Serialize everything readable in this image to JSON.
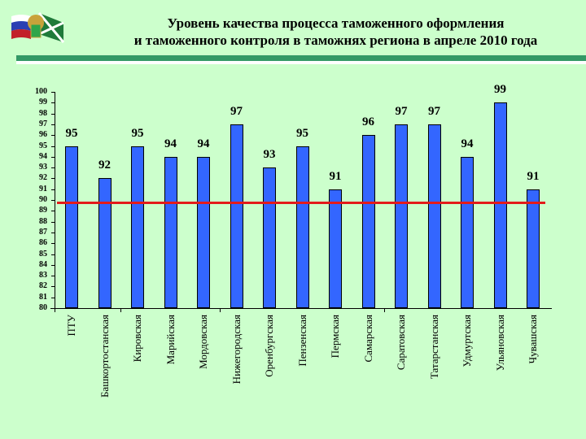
{
  "header": {
    "title_line1": "Уровень качества процесса таможенного оформления",
    "title_line2": "и таможенного контроля в таможнях региона в апреле 2010 года",
    "logo_icon": "russian-flag-customs-emblem-icon"
  },
  "colors": {
    "background": "#ccffcc",
    "bar": "#3366ff",
    "threshold_line": "#e31b1b",
    "header_rule": "#339966"
  },
  "chart_data": {
    "type": "bar",
    "title": "Уровень качества процесса таможенного оформления и таможенного контроля в таможнях региона в апреле 2010 года",
    "xlabel": "",
    "ylabel": "",
    "ylim": [
      80,
      100
    ],
    "yticks": [
      "100",
      "99",
      "98",
      "97",
      "96",
      "95",
      "94",
      "93",
      "92",
      "91",
      "90",
      "89",
      "88",
      "87",
      "86",
      "85",
      "84",
      "83",
      "82",
      "81",
      "80"
    ],
    "grid": false,
    "legend": null,
    "categories": [
      "ПТУ",
      "Башкортостанская",
      "Кировская",
      "Марийская",
      "Мордовская",
      "Нижегородская",
      "Оренбургская",
      "Пензенская",
      "Пермская",
      "Самарская",
      "Саратовская",
      "Татарстанская",
      "Удмуртская",
      "Ульяновская",
      "Чувашская"
    ],
    "values": [
      95,
      92,
      95,
      94,
      94,
      97,
      93,
      95,
      91,
      96,
      97,
      97,
      94,
      99,
      91
    ],
    "value_labels": [
      "95",
      "92",
      "95",
      "94",
      "94",
      "97",
      "93",
      "95",
      "91",
      "96",
      "97",
      "97",
      "94",
      "99",
      "91"
    ],
    "threshold": {
      "value": 89.8,
      "color": "#e31b1b"
    }
  }
}
